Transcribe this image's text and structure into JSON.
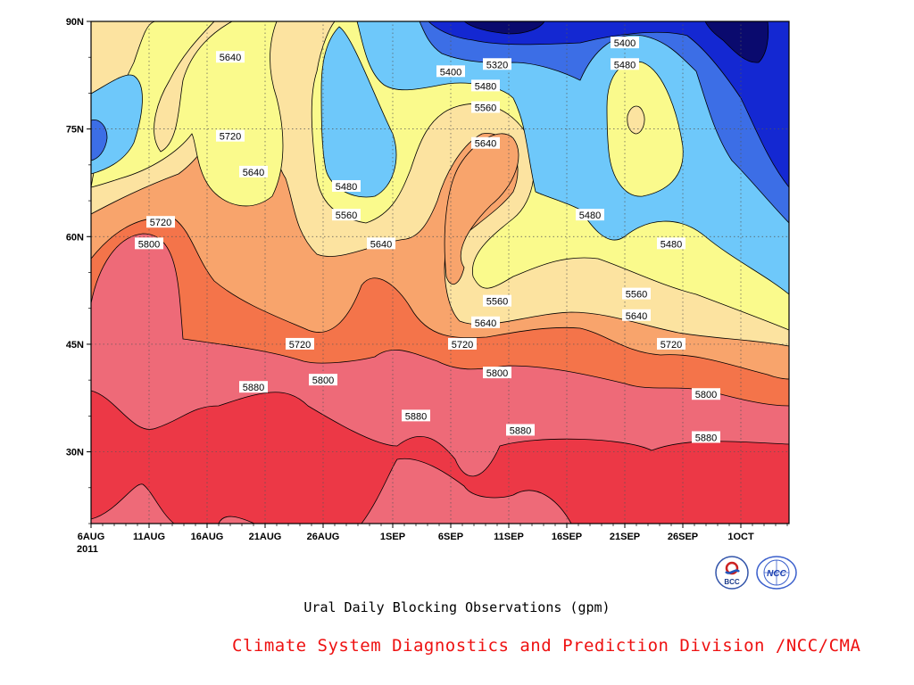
{
  "chart_data": {
    "type": "heatmap",
    "subtype": "filled-contour",
    "title": "Ural Daily Blocking Observations (gpm)",
    "x_tick_labels": [
      "6AUG",
      "11AUG",
      "16AUG",
      "21AUG",
      "26AUG",
      "1SEP",
      "6SEP",
      "11SEP",
      "16SEP",
      "21SEP",
      "26SEP",
      "1OCT"
    ],
    "x_year_label": "2011",
    "y_tick_labels": [
      "30N",
      "45N",
      "60N",
      "75N",
      "90N"
    ],
    "ylim": [
      20,
      90
    ],
    "contour_levels": [
      5320,
      5400,
      5480,
      5560,
      5640,
      5720,
      5800,
      5880
    ],
    "contour_labels": [
      {
        "text": "5640",
        "date": "18AUG",
        "lat": 85
      },
      {
        "text": "5720",
        "date": "18AUG",
        "lat": 74
      },
      {
        "text": "5640",
        "date": "20AUG",
        "lat": 69
      },
      {
        "text": "5720",
        "date": "12AUG",
        "lat": 62
      },
      {
        "text": "5800",
        "date": "11AUG",
        "lat": 59
      },
      {
        "text": "5400",
        "date": "6SEP",
        "lat": 83
      },
      {
        "text": "5320",
        "date": "10SEP",
        "lat": 84
      },
      {
        "text": "5480",
        "date": "9SEP",
        "lat": 81
      },
      {
        "text": "5560",
        "date": "9SEP",
        "lat": 78
      },
      {
        "text": "5640",
        "date": "9SEP",
        "lat": 73
      },
      {
        "text": "5480",
        "date": "28AUG",
        "lat": 67
      },
      {
        "text": "5560",
        "date": "28AUG",
        "lat": 63
      },
      {
        "text": "5640",
        "date": "31AUG",
        "lat": 59
      },
      {
        "text": "5480",
        "date": "18SEP",
        "lat": 63
      },
      {
        "text": "5480",
        "date": "25SEP",
        "lat": 59
      },
      {
        "text": "5400",
        "date": "21SEP",
        "lat": 87
      },
      {
        "text": "5480",
        "date": "21SEP",
        "lat": 84
      },
      {
        "text": "5560",
        "date": "10SEP",
        "lat": 51
      },
      {
        "text": "5560",
        "date": "22SEP",
        "lat": 52
      },
      {
        "text": "5640",
        "date": "9SEP",
        "lat": 48
      },
      {
        "text": "5640",
        "date": "22SEP",
        "lat": 49
      },
      {
        "text": "5720",
        "date": "24AUG",
        "lat": 45
      },
      {
        "text": "5720",
        "date": "7SEP",
        "lat": 45
      },
      {
        "text": "5720",
        "date": "25SEP",
        "lat": 45
      },
      {
        "text": "5800",
        "date": "26AUG",
        "lat": 40
      },
      {
        "text": "5800",
        "date": "10SEP",
        "lat": 41
      },
      {
        "text": "5800",
        "date": "28SEP",
        "lat": 38
      },
      {
        "text": "5880",
        "date": "20AUG",
        "lat": 39
      },
      {
        "text": "5880",
        "date": "3SEP",
        "lat": 35
      },
      {
        "text": "5880",
        "date": "12SEP",
        "lat": 33
      },
      {
        "text": "5880",
        "date": "28SEP",
        "lat": 32
      }
    ],
    "colors": {
      "le5320": "#0a0a6e",
      "5320-5400": "#1428d2",
      "5400-5480": "#3c6ee6",
      "5480-5560": "#6ec8fa",
      "5560-5640": "#fafa8c",
      "5640-5720": "#fce3a0",
      "5720-5800": "#f8a46c",
      "5800-5880": "#f4744a",
      "5880-5960": "#ee6a78",
      "ge5960": "#ec3846"
    },
    "grid": true
  },
  "caption": "Ural Daily Blocking Observations (gpm)",
  "credit": "Climate System Diagnostics and Prediction Division /NCC/CMA",
  "logos": [
    {
      "name": "BCC",
      "text": "BCC"
    },
    {
      "name": "NCC",
      "text": "NCC"
    }
  ]
}
